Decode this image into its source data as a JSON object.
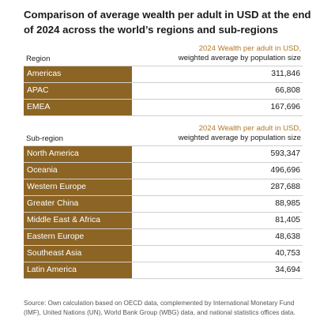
{
  "title": "Comparison of average wealth per adult in USD at the end of 2024 across the world’s regions and sub-regions",
  "regions_table": {
    "header_label": "Region",
    "column_header_line1": "2024 Wealth per adult in USD,",
    "column_header_line2": "weighted average by population size",
    "rows": [
      {
        "name": "Americas",
        "value": "311,846"
      },
      {
        "name": "APAC",
        "value": "66,808"
      },
      {
        "name": "EMEA",
        "value": "167,696"
      }
    ]
  },
  "subregions_table": {
    "header_label": "Sub-region",
    "column_header_line1": "2024 Wealth per adult in USD,",
    "column_header_line2": "weighted average by population size",
    "rows": [
      {
        "name": "North America",
        "value": "593,347"
      },
      {
        "name": "Oceania",
        "value": "496,696"
      },
      {
        "name": "Western Europe",
        "value": "287,688"
      },
      {
        "name": "Greater China",
        "value": "88,985"
      },
      {
        "name": "Middle East & Africa",
        "value": "81,405"
      },
      {
        "name": "Eastern Europe",
        "value": "48,638"
      },
      {
        "name": "Southeast Asia",
        "value": "40,753"
      },
      {
        "name": "Latin America",
        "value": "34,694"
      }
    ]
  },
  "source": "Source: Own calculation based on OECD data, complemented by International Monetary Fund (IMF), United Nations (UN), World Bank Group (WBG) data, and national statistics offices data.",
  "colors": {
    "accent_header": "#b07a2a",
    "label_cell_bg": "#8c6424",
    "rule": "#cfcfcf"
  }
}
